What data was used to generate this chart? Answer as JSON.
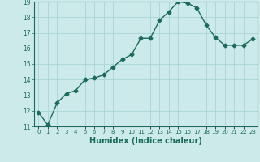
{
  "x": [
    0,
    1,
    2,
    3,
    4,
    5,
    6,
    7,
    8,
    9,
    10,
    11,
    12,
    13,
    14,
    15,
    16,
    17,
    18,
    19,
    20,
    21,
    22,
    23
  ],
  "y": [
    11.9,
    11.1,
    12.5,
    13.1,
    13.3,
    14.0,
    14.1,
    14.3,
    14.8,
    15.3,
    15.6,
    16.65,
    16.65,
    17.8,
    18.35,
    19.0,
    18.9,
    18.6,
    17.5,
    16.7,
    16.2,
    16.2,
    16.2,
    16.6
  ],
  "line_color": "#1a6b5a",
  "marker_color": "#1a6b5a",
  "bg_color": "#cceaea",
  "grid_color": "#aad4d4",
  "xlabel": "Humidex (Indice chaleur)",
  "ylabel": "",
  "ylim": [
    11,
    19
  ],
  "xlim": [
    -0.5,
    23.5
  ],
  "yticks": [
    11,
    12,
    13,
    14,
    15,
    16,
    17,
    18,
    19
  ],
  "xtick_labels": [
    "0",
    "1",
    "2",
    "3",
    "4",
    "5",
    "6",
    "7",
    "8",
    "9",
    "10",
    "11",
    "12",
    "13",
    "14",
    "15",
    "16",
    "17",
    "18",
    "19",
    "20",
    "21",
    "22",
    "23"
  ],
  "xlabel_color": "#1a6b5a",
  "tick_color": "#1a6b5a",
  "xlabel_fontsize": 7,
  "marker_size": 2.5,
  "line_width": 1.0
}
